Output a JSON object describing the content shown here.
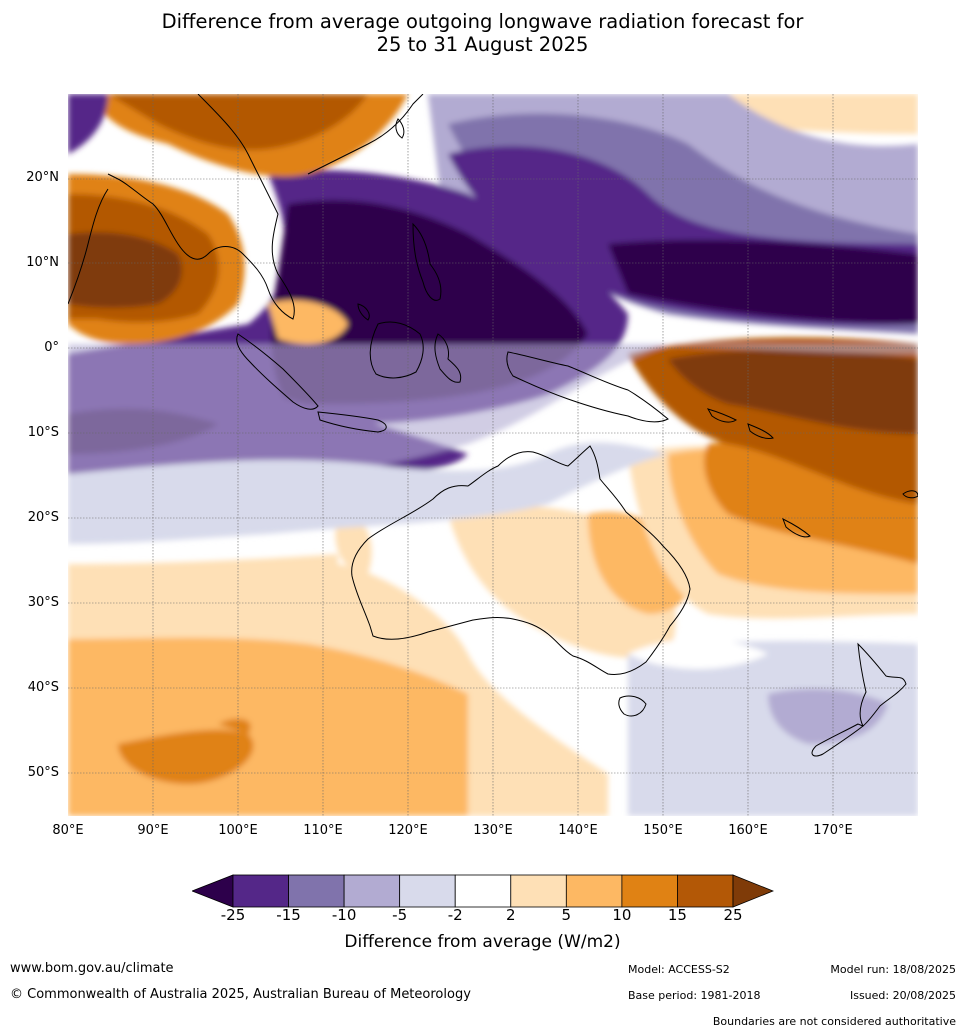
{
  "title_line1": "Difference from average outgoing longwave radiation forecast for",
  "title_line2": "25 to 31 August 2025",
  "lat_labels": [
    "20°N",
    "10°N",
    "0°",
    "10°S",
    "20°S",
    "30°S",
    "40°S",
    "50°S"
  ],
  "lon_labels": [
    "80°E",
    "90°E",
    "100°E",
    "110°E",
    "120°E",
    "130°E",
    "140°E",
    "150°E",
    "160°E",
    "170°E"
  ],
  "colorbar": {
    "ticks": [
      "-25",
      "-15",
      "-10",
      "-5",
      "-2",
      "2",
      "5",
      "10",
      "15",
      "25"
    ],
    "colors": [
      "#2d004b",
      "#542788",
      "#8073ac",
      "#b2abd2",
      "#d8daeb",
      "#ffffff",
      "#fee0b6",
      "#fdb863",
      "#e08214",
      "#b35806",
      "#7f3b08"
    ],
    "label": "Difference from average (W/m2)"
  },
  "footer": {
    "url": "www.bom.gov.au/climate",
    "copyright": "© Commonwealth of Australia 2025, Australian Bureau of Meteorology",
    "model": "Model: ACCESS-S2",
    "model_run": "Model run: 18/08/2025",
    "base_period": "Base period: 1981-2018",
    "issued": "Issued: 20/08/2025",
    "disclaimer": "Boundaries are not considered authoritative"
  }
}
